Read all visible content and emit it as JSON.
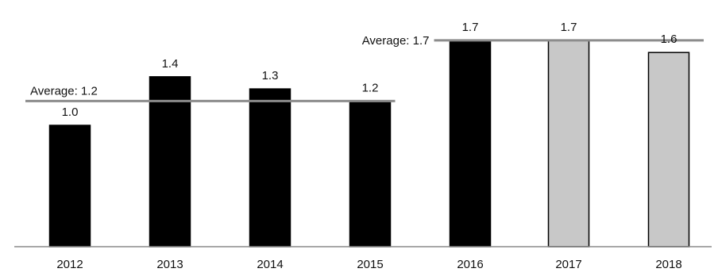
{
  "chart_data": {
    "type": "bar",
    "categories": [
      "2012",
      "2013",
      "2014",
      "2015",
      "2016",
      "2017",
      "2018"
    ],
    "values": [
      1.0,
      1.4,
      1.3,
      1.2,
      1.7,
      1.7,
      1.6
    ],
    "data_labels": [
      "1.0",
      "1.4",
      "1.3",
      "1.2",
      "1.7",
      "1.7",
      "1.6"
    ],
    "bar_fill": [
      "#000000",
      "#000000",
      "#000000",
      "#000000",
      "#000000",
      "#c8c8c8",
      "#c8c8c8"
    ],
    "bar_stroke": "#000000",
    "averages": [
      {
        "label": "Average: 1.2",
        "value": 1.2,
        "from": "2012",
        "to": "2015"
      },
      {
        "label": "Average: 1.7",
        "value": 1.7,
        "from": "2016",
        "to": "2018"
      }
    ],
    "average_line_color": "#8c8c8c",
    "axis_color": "#8c8c8c",
    "title": "",
    "xlabel": "",
    "ylabel": "",
    "ylim": [
      0,
      1.9
    ],
    "grid": false,
    "legend": "none"
  }
}
